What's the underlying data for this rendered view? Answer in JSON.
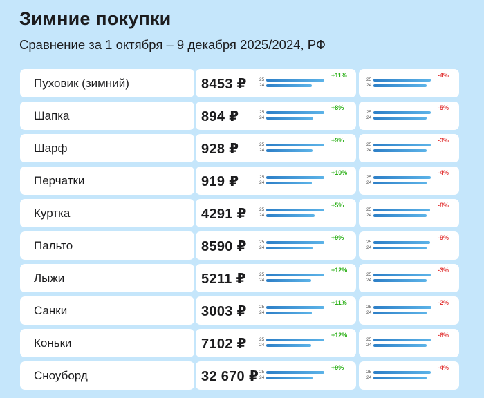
{
  "header": {
    "title": "Зимние покупки",
    "subtitle": "Сравнение за 1 октября – 9 декабря 2025/2024, РФ"
  },
  "labels": {
    "year_new": "25",
    "year_old": "24"
  },
  "colors": {
    "background": "#c5e6fb",
    "card": "#ffffff",
    "bar": "#3a8fd4",
    "up": "#2fb11b",
    "down": "#e23b3b"
  },
  "chart_data": {
    "type": "table",
    "title": "Зимние покупки",
    "subtitle": "Сравнение за 1 октября – 9 декабря 2025/2024, РФ",
    "rows": [
      {
        "name": "Пуховик (зимний)",
        "price": "8453 ₽",
        "change_1": "+11%",
        "change_1_value": 11,
        "change_2": "-4%",
        "change_2_value": -4
      },
      {
        "name": "Шапка",
        "price": "894 ₽",
        "change_1": "+8%",
        "change_1_value": 8,
        "change_2": "-5%",
        "change_2_value": -5
      },
      {
        "name": "Шарф",
        "price": "928 ₽",
        "change_1": "+9%",
        "change_1_value": 9,
        "change_2": "-3%",
        "change_2_value": -3
      },
      {
        "name": "Перчатки",
        "price": "919 ₽",
        "change_1": "+10%",
        "change_1_value": 10,
        "change_2": "-4%",
        "change_2_value": -4
      },
      {
        "name": "Куртка",
        "price": "4291 ₽",
        "change_1": "+5%",
        "change_1_value": 5,
        "change_2": "-8%",
        "change_2_value": -8
      },
      {
        "name": "Пальто",
        "price": "8590 ₽",
        "change_1": "+9%",
        "change_1_value": 9,
        "change_2": "-9%",
        "change_2_value": -9
      },
      {
        "name": "Лыжи",
        "price": "5211 ₽",
        "change_1": "+12%",
        "change_1_value": 12,
        "change_2": "-3%",
        "change_2_value": -3
      },
      {
        "name": "Санки",
        "price": "3003 ₽",
        "change_1": "+11%",
        "change_1_value": 11,
        "change_2": "-2%",
        "change_2_value": -2
      },
      {
        "name": "Коньки",
        "price": "7102 ₽",
        "change_1": "+12%",
        "change_1_value": 12,
        "change_2": "-6%",
        "change_2_value": -6
      },
      {
        "name": "Сноуборд",
        "price": "32 670 ₽",
        "change_1": "+9%",
        "change_1_value": 9,
        "change_2": "-4%",
        "change_2_value": -4
      }
    ]
  }
}
